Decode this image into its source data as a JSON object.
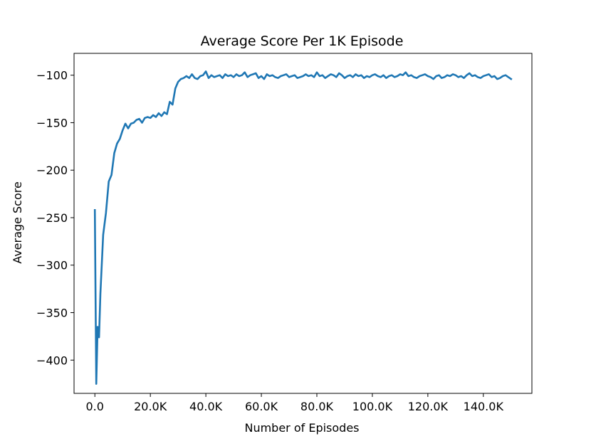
{
  "chart_data": {
    "type": "line",
    "title": "Average Score Per 1K Episode",
    "xlabel": "Number of Episodes",
    "ylabel": "Average Score",
    "xlim": [
      -7.5,
      157.5
    ],
    "ylim": [
      -435,
      -77
    ],
    "grid": false,
    "x_unit": "thousand episodes",
    "xticks": [
      {
        "value": 0,
        "label": "0.0"
      },
      {
        "value": 20,
        "label": "20.0K"
      },
      {
        "value": 40,
        "label": "40.0K"
      },
      {
        "value": 60,
        "label": "60.0K"
      },
      {
        "value": 80,
        "label": "80.0K"
      },
      {
        "value": 100,
        "label": "100.0K"
      },
      {
        "value": 120,
        "label": "120.0K"
      },
      {
        "value": 140,
        "label": "140.0K"
      }
    ],
    "yticks": [
      {
        "value": -100,
        "label": "−100"
      },
      {
        "value": -150,
        "label": "−150"
      },
      {
        "value": -200,
        "label": "−200"
      },
      {
        "value": -250,
        "label": "−250"
      },
      {
        "value": -300,
        "label": "−300"
      },
      {
        "value": -350,
        "label": "−350"
      },
      {
        "value": -400,
        "label": "−400"
      }
    ],
    "series": [
      {
        "color": "#1f77b4",
        "x": [
          0,
          0.5,
          1,
          1.5,
          2,
          3,
          4,
          5,
          6,
          7,
          8,
          9,
          10,
          11,
          12,
          13,
          14,
          15,
          16,
          17,
          18,
          19,
          20,
          21,
          22,
          23,
          24,
          25,
          26,
          27,
          28,
          29,
          30,
          31,
          32,
          33,
          34,
          35,
          36,
          37,
          38,
          39,
          40,
          41,
          42,
          43,
          44,
          45,
          46,
          47,
          48,
          49,
          50,
          51,
          52,
          53,
          54,
          55,
          56,
          57,
          58,
          59,
          60,
          61,
          62,
          63,
          64,
          65,
          66,
          67,
          68,
          69,
          70,
          71,
          72,
          73,
          74,
          75,
          76,
          77,
          78,
          79,
          80,
          81,
          82,
          83,
          84,
          85,
          86,
          87,
          88,
          89,
          90,
          91,
          92,
          93,
          94,
          95,
          96,
          97,
          98,
          99,
          100,
          101,
          102,
          103,
          104,
          105,
          106,
          107,
          108,
          109,
          110,
          111,
          112,
          113,
          114,
          115,
          116,
          117,
          118,
          119,
          120,
          121,
          122,
          123,
          124,
          125,
          126,
          127,
          128,
          129,
          130,
          131,
          132,
          133,
          134,
          135,
          136,
          137,
          138,
          139,
          140,
          141,
          142,
          143,
          144,
          145,
          146,
          147,
          148,
          149,
          150
        ],
        "values": [
          -242,
          -425,
          -365,
          -376,
          -330,
          -268,
          -245,
          -212,
          -205,
          -182,
          -172,
          -167,
          -158,
          -151,
          -156,
          -151,
          -150,
          -147,
          -146,
          -150,
          -145,
          -144,
          -145,
          -142,
          -144,
          -140,
          -143,
          -139,
          -141,
          -128,
          -131,
          -114,
          -107,
          -104,
          -103,
          -101,
          -103,
          -99,
          -103,
          -104,
          -101,
          -100,
          -96,
          -103,
          -100,
          -102,
          -101,
          -100,
          -103,
          -99,
          -101,
          -100,
          -102,
          -99,
          -101,
          -100,
          -97,
          -102,
          -100,
          -99,
          -98,
          -103,
          -101,
          -104,
          -99,
          -101,
          -100,
          -102,
          -103,
          -101,
          -100,
          -99,
          -102,
          -101,
          -100,
          -103,
          -102,
          -101,
          -99,
          -101,
          -100,
          -102,
          -97,
          -101,
          -100,
          -103,
          -101,
          -99,
          -100,
          -102,
          -98,
          -100,
          -103,
          -101,
          -100,
          -102,
          -99,
          -101,
          -100,
          -103,
          -101,
          -102,
          -100,
          -99,
          -101,
          -102,
          -100,
          -103,
          -101,
          -100,
          -102,
          -101,
          -99,
          -100,
          -97,
          -101,
          -100,
          -102,
          -103,
          -101,
          -100,
          -99,
          -101,
          -102,
          -104,
          -101,
          -100,
          -103,
          -102,
          -100,
          -101,
          -99,
          -100,
          -102,
          -101,
          -103,
          -100,
          -98,
          -101,
          -100,
          -102,
          -103,
          -101,
          -100,
          -99,
          -102,
          -101,
          -104,
          -103,
          -101,
          -100,
          -102,
          -104
        ]
      }
    ]
  }
}
